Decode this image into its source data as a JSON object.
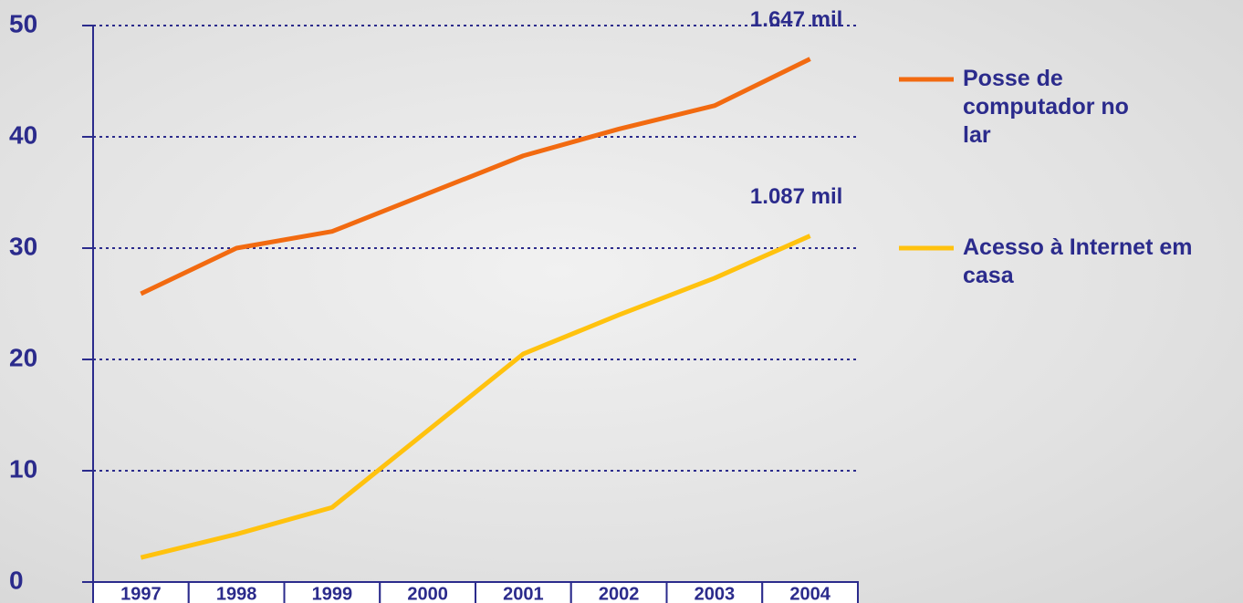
{
  "chart_data": {
    "type": "line",
    "categories": [
      "1997",
      "1998",
      "1999",
      "2000",
      "2001",
      "2002",
      "2003",
      "2004"
    ],
    "series": [
      {
        "name": "Posse de computador no lar",
        "color": "#f26a10",
        "values": [
          25.9,
          30.0,
          31.5,
          34.9,
          38.3,
          40.7,
          42.8,
          47.0
        ]
      },
      {
        "name": "Acesso à Internet em casa",
        "color": "#ffc20e",
        "values": [
          2.2,
          4.3,
          6.7,
          13.6,
          20.5,
          24.0,
          27.3,
          31.1
        ]
      }
    ],
    "annotations": [
      "1.647 mil",
      "1.087 mil"
    ],
    "ylim": [
      0,
      50
    ],
    "yticks": [
      0,
      10,
      20,
      30,
      40,
      50
    ],
    "grid": true,
    "legend": "right"
  }
}
